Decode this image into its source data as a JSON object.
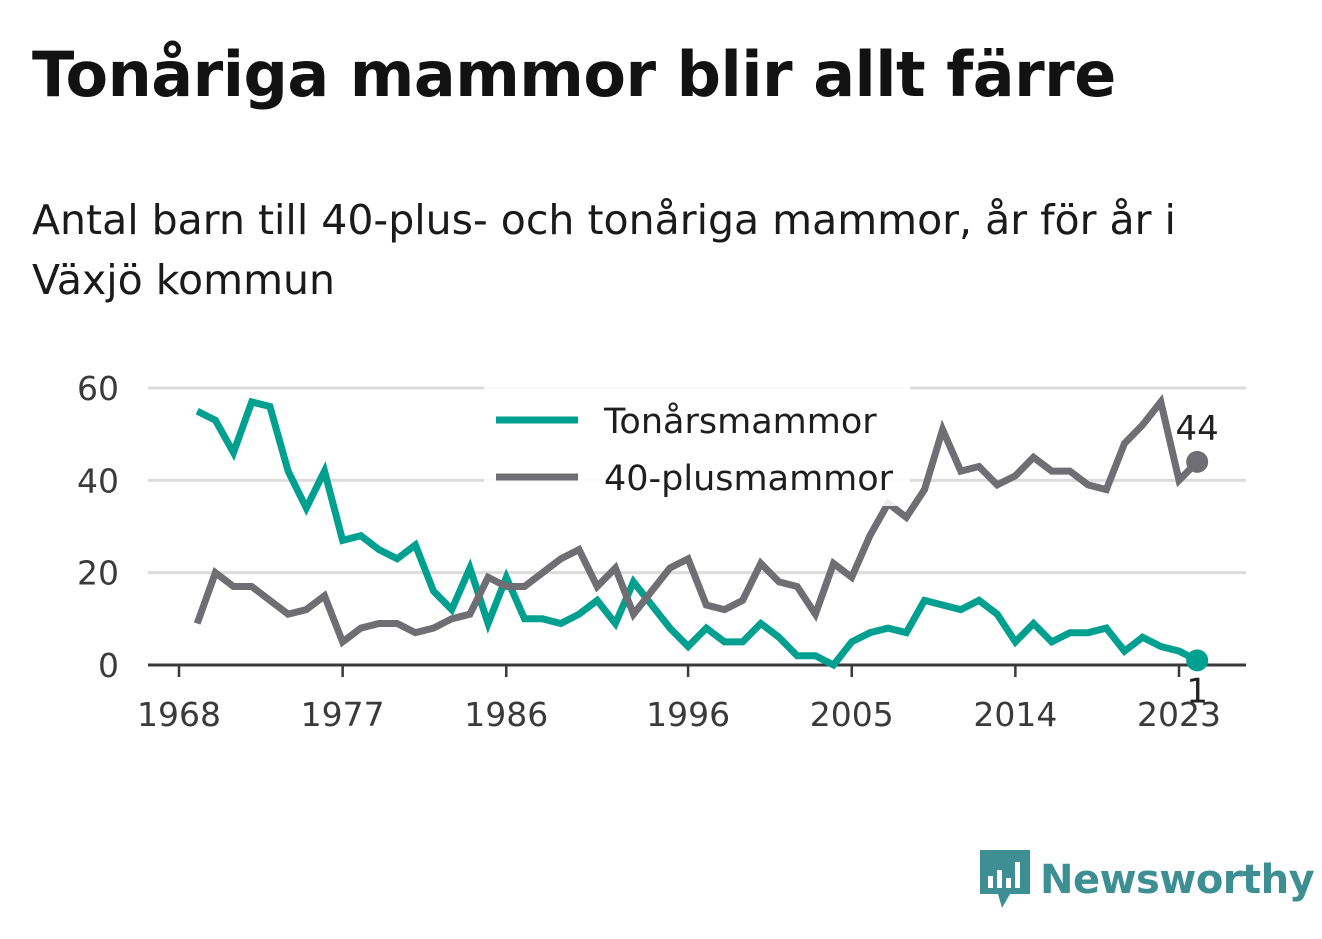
{
  "header": {
    "title": "Tonåriga mammor blir allt färre",
    "subtitle": "Antal barn till 40-plus- och tonåriga mammor, år för år i Växjö kommun"
  },
  "brand": {
    "name": "Newsworthy",
    "icon": "bar-chart-bubble-icon",
    "color": "#3d8f93"
  },
  "chart_data": {
    "type": "line",
    "title": "Tonåriga mammor blir allt färre",
    "subtitle": "Antal barn till 40-plus- och tonåriga mammor, år för år i Växjö kommun",
    "xlabel": "",
    "ylabel": "",
    "xlim": [
      1966,
      2027
    ],
    "ylim": [
      0,
      60
    ],
    "x_ticks": [
      1968,
      1977,
      1986,
      1996,
      2005,
      2014,
      2023
    ],
    "y_ticks": [
      0,
      20,
      40,
      60
    ],
    "grid": "horizontal",
    "legend": "top-center",
    "x": [
      1969,
      1970,
      1971,
      1972,
      1973,
      1974,
      1975,
      1976,
      1977,
      1978,
      1979,
      1980,
      1981,
      1982,
      1983,
      1984,
      1985,
      1986,
      1987,
      1988,
      1989,
      1990,
      1991,
      1992,
      1993,
      1994,
      1995,
      1996,
      1997,
      1998,
      1999,
      2000,
      2001,
      2002,
      2003,
      2004,
      2005,
      2006,
      2007,
      2008,
      2009,
      2010,
      2011,
      2012,
      2013,
      2014,
      2015,
      2016,
      2017,
      2018,
      2019,
      2020,
      2021,
      2022,
      2023,
      2024
    ],
    "series": [
      {
        "name": "Tonårsmammor",
        "color": "#00a091",
        "values": [
          55,
          53,
          46,
          57,
          56,
          42,
          34,
          42,
          27,
          28,
          25,
          23,
          26,
          16,
          12,
          21,
          9,
          19,
          10,
          10,
          9,
          11,
          14,
          9,
          18,
          13,
          8,
          4,
          8,
          5,
          5,
          9,
          6,
          2,
          2,
          0,
          5,
          7,
          8,
          7,
          14,
          13,
          12,
          14,
          11,
          5,
          9,
          5,
          7,
          7,
          8,
          3,
          6,
          4,
          3,
          1
        ],
        "end_label": "1"
      },
      {
        "name": "40-plusmammor",
        "color": "#6e6e73",
        "values": [
          9,
          20,
          17,
          17,
          14,
          11,
          12,
          15,
          5,
          8,
          9,
          9,
          7,
          8,
          10,
          11,
          19,
          17,
          17,
          20,
          23,
          25,
          17,
          21,
          11,
          16,
          21,
          23,
          13,
          12,
          14,
          22,
          18,
          17,
          11,
          22,
          19,
          28,
          35,
          32,
          38,
          51,
          42,
          43,
          39,
          41,
          45,
          42,
          42,
          39,
          38,
          48,
          52,
          57,
          40,
          44
        ],
        "end_label": "44"
      }
    ]
  }
}
